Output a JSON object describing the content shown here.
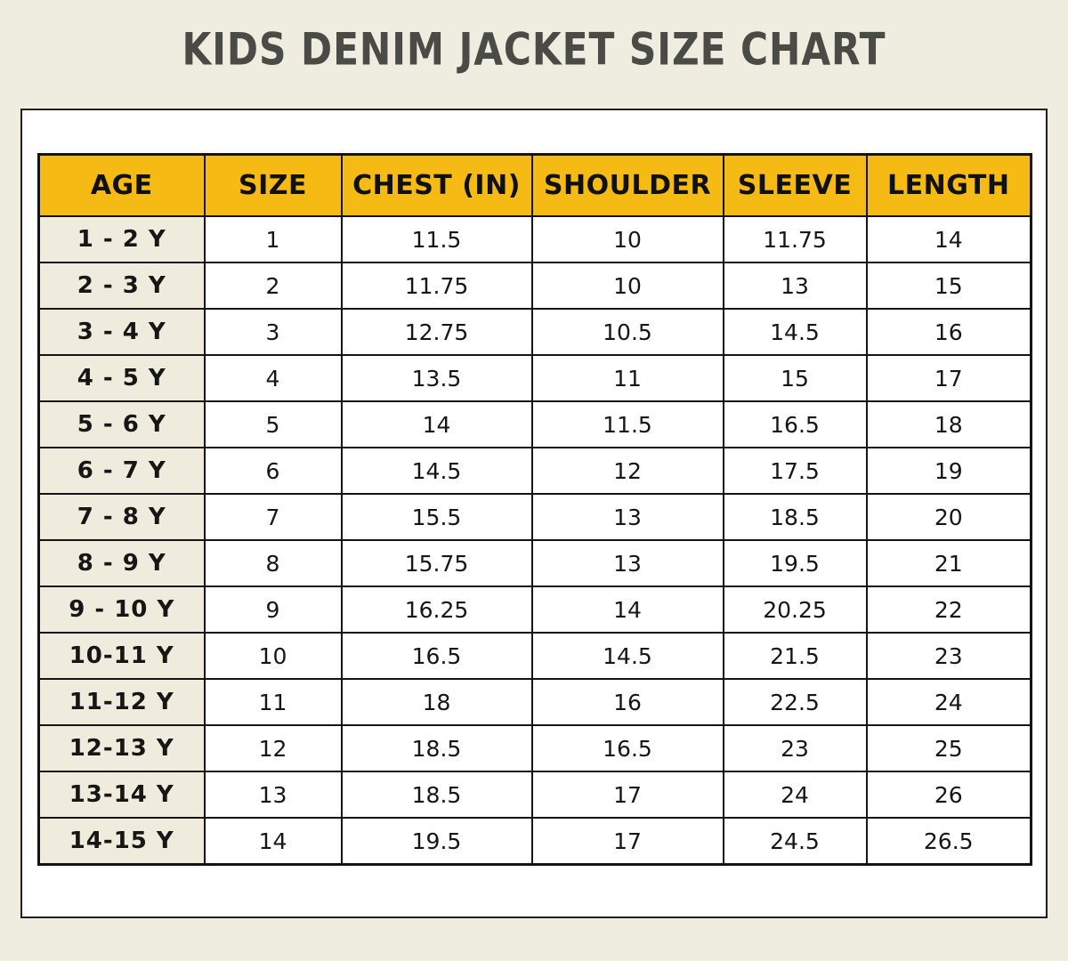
{
  "title": "KIDS DENIM JACKET SIZE CHART",
  "colors": {
    "page_background": "#EFEDDF",
    "card_background": "#FFFFFF",
    "header_yellow": "#F6BA15",
    "age_column_cream": "#F0ECDD",
    "border_black": "#141414",
    "title_gray": "#4A4A47"
  },
  "chart_data": {
    "type": "table",
    "title": "KIDS DENIM JACKET SIZE CHART",
    "columns": [
      "AGE",
      "SIZE",
      "CHEST (IN)",
      "SHOULDER",
      "SLEEVE",
      "LENGTH"
    ],
    "rows": [
      [
        "1 - 2 Y",
        "1",
        "11.5",
        "10",
        "11.75",
        "14"
      ],
      [
        "2 - 3 Y",
        "2",
        "11.75",
        "10",
        "13",
        "15"
      ],
      [
        "3 - 4 Y",
        "3",
        "12.75",
        "10.5",
        "14.5",
        "16"
      ],
      [
        "4 - 5 Y",
        "4",
        "13.5",
        "11",
        "15",
        "17"
      ],
      [
        "5 - 6 Y",
        "5",
        "14",
        "11.5",
        "16.5",
        "18"
      ],
      [
        "6 - 7 Y",
        "6",
        "14.5",
        "12",
        "17.5",
        "19"
      ],
      [
        "7 - 8 Y",
        "7",
        "15.5",
        "13",
        "18.5",
        "20"
      ],
      [
        "8 - 9 Y",
        "8",
        "15.75",
        "13",
        "19.5",
        "21"
      ],
      [
        "9 - 10 Y",
        "9",
        "16.25",
        "14",
        "20.25",
        "22"
      ],
      [
        "10-11 Y",
        "10",
        "16.5",
        "14.5",
        "21.5",
        "23"
      ],
      [
        "11-12 Y",
        "11",
        "18",
        "16",
        "22.5",
        "24"
      ],
      [
        "12-13 Y",
        "12",
        "18.5",
        "16.5",
        "23",
        "25"
      ],
      [
        "13-14 Y",
        "13",
        "18.5",
        "17",
        "24",
        "26"
      ],
      [
        "14-15 Y",
        "14",
        "19.5",
        "17",
        "24.5",
        "26.5"
      ]
    ]
  }
}
